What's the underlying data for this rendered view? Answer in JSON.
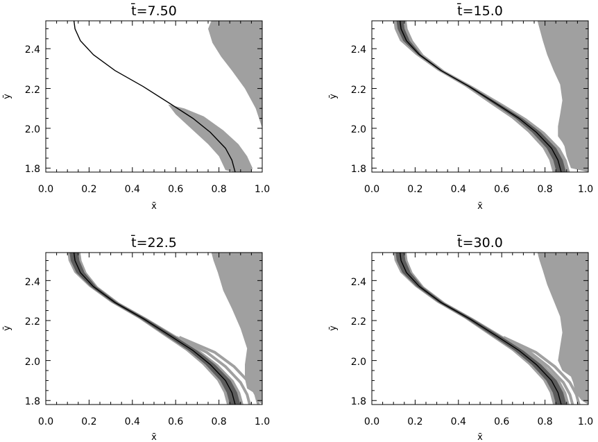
{
  "chart_data": [
    {
      "type": "area",
      "title": "t̄=7.50",
      "xlabel": "x̄",
      "ylabel": "ȳ",
      "xlim": [
        0.0,
        1.0
      ],
      "ylim": [
        1.78,
        2.54
      ],
      "xticks": [
        "0.0",
        "0.2",
        "0.4",
        "0.6",
        "0.8",
        "1.0"
      ],
      "yticks": [
        "1.8",
        "2.0",
        "2.2",
        "2.4"
      ],
      "grid": false,
      "colors": {
        "light": "#a0a0a0",
        "dark": "#5c5c5c",
        "line": "#000000"
      },
      "series": [
        {
          "role": "center-line",
          "x": [
            0.13,
            0.135,
            0.16,
            0.22,
            0.32,
            0.45,
            0.58,
            0.68,
            0.76,
            0.83,
            0.86,
            0.875
          ],
          "y": [
            2.54,
            2.5,
            2.44,
            2.37,
            2.29,
            2.21,
            2.12,
            2.05,
            1.98,
            1.9,
            1.84,
            1.78
          ]
        },
        {
          "role": "light-band",
          "x": [
            0.565,
            0.64,
            0.73,
            0.82,
            0.89,
            0.93,
            0.955,
            0.95,
            0.87,
            0.83,
            0.8,
            0.75,
            0.68,
            0.6
          ],
          "y": [
            2.12,
            2.1,
            2.06,
            1.99,
            1.92,
            1.86,
            1.8,
            1.78,
            1.78,
            1.79,
            1.86,
            1.92,
            1.99,
            2.07
          ]
        },
        {
          "role": "light-right-region",
          "x": [
            0.765,
            1.0,
            1.0,
            0.97,
            0.92,
            0.86,
            0.81,
            0.77,
            0.75
          ],
          "y": [
            2.54,
            2.54,
            2.0,
            2.1,
            2.2,
            2.29,
            2.36,
            2.43,
            2.5
          ]
        }
      ]
    },
    {
      "type": "area",
      "title": "t̄=15.0",
      "xlabel": "x̄",
      "ylabel": "ȳ",
      "xlim": [
        0.0,
        1.0
      ],
      "ylim": [
        1.78,
        2.54
      ],
      "xticks": [
        "0.0",
        "0.2",
        "0.4",
        "0.6",
        "0.8",
        "1.0"
      ],
      "yticks": [
        "1.8",
        "2.0",
        "2.2",
        "2.4"
      ],
      "grid": false,
      "colors": {
        "light": "#a0a0a0",
        "dark": "#5c5c5c",
        "line": "#000000"
      },
      "series": [
        {
          "role": "center-line",
          "x": [
            0.13,
            0.135,
            0.16,
            0.22,
            0.32,
            0.45,
            0.58,
            0.68,
            0.76,
            0.83,
            0.86,
            0.875
          ],
          "y": [
            2.54,
            2.5,
            2.44,
            2.37,
            2.29,
            2.21,
            2.12,
            2.05,
            1.98,
            1.9,
            1.84,
            1.78
          ]
        },
        {
          "role": "light-band-halfwidth",
          "w": [
            0.03,
            0.03,
            0.03,
            0.018,
            0.015,
            0.018,
            0.028,
            0.033,
            0.038,
            0.04,
            0.04,
            0.04
          ]
        },
        {
          "role": "dark-band-halfwidth",
          "w": [
            0.016,
            0.016,
            0.015,
            0.008,
            0.006,
            0.008,
            0.013,
            0.016,
            0.02,
            0.022,
            0.022,
            0.022
          ]
        },
        {
          "role": "light-right-region",
          "x": [
            0.765,
            1.0,
            1.0,
            0.92,
            0.9,
            0.89,
            0.88,
            0.86,
            0.86,
            0.87,
            0.88,
            0.87,
            0.84,
            0.81,
            0.79,
            0.775
          ],
          "y": [
            2.54,
            2.54,
            1.78,
            1.8,
            1.86,
            1.91,
            1.93,
            1.96,
            2.01,
            2.07,
            2.14,
            2.22,
            2.29,
            2.37,
            2.44,
            2.5
          ]
        }
      ]
    },
    {
      "type": "area",
      "title": "t̄=22.5",
      "xlabel": "x̄",
      "ylabel": "ȳ",
      "xlim": [
        0.0,
        1.0
      ],
      "ylim": [
        1.78,
        2.54
      ],
      "xticks": [
        "0.0",
        "0.2",
        "0.4",
        "0.6",
        "0.8",
        "1.0"
      ],
      "yticks": [
        "1.8",
        "2.0",
        "2.2",
        "2.4"
      ],
      "grid": false,
      "colors": {
        "light": "#a0a0a0",
        "dark": "#5c5c5c",
        "line": "#000000"
      },
      "series": [
        {
          "role": "center-line",
          "x": [
            0.13,
            0.135,
            0.16,
            0.22,
            0.32,
            0.45,
            0.58,
            0.68,
            0.76,
            0.83,
            0.86,
            0.875
          ],
          "y": [
            2.54,
            2.5,
            2.44,
            2.37,
            2.29,
            2.21,
            2.12,
            2.05,
            1.98,
            1.9,
            1.84,
            1.78
          ]
        },
        {
          "role": "light-band-halfwidth",
          "w": [
            0.03,
            0.03,
            0.028,
            0.02,
            0.018,
            0.02,
            0.028,
            0.032,
            0.036,
            0.038,
            0.038,
            0.038
          ]
        },
        {
          "role": "dark-band-halfwidth",
          "w": [
            0.02,
            0.02,
            0.019,
            0.013,
            0.011,
            0.013,
            0.018,
            0.02,
            0.022,
            0.024,
            0.024,
            0.024
          ]
        },
        {
          "role": "light-filaments",
          "offsets": [
            0.07,
            0.11
          ]
        },
        {
          "role": "light-right-region",
          "x": [
            0.765,
            1.0,
            1.0,
            0.98,
            0.96,
            0.93,
            0.92,
            0.92,
            0.93,
            0.9,
            0.86,
            0.82,
            0.795,
            0.775
          ],
          "y": [
            2.54,
            2.54,
            1.78,
            1.8,
            1.84,
            1.86,
            1.91,
            1.98,
            2.06,
            2.16,
            2.26,
            2.35,
            2.44,
            2.5
          ]
        }
      ]
    },
    {
      "type": "area",
      "title": "t̄=30.0",
      "xlabel": "x̄",
      "ylabel": "ȳ",
      "xlim": [
        0.0,
        1.0
      ],
      "ylim": [
        1.78,
        2.54
      ],
      "xticks": [
        "0.0",
        "0.2",
        "0.4",
        "0.6",
        "0.8",
        "1.0"
      ],
      "yticks": [
        "1.8",
        "2.0",
        "2.2",
        "2.4"
      ],
      "grid": false,
      "colors": {
        "light": "#a0a0a0",
        "dark": "#5c5c5c",
        "line": "#000000"
      },
      "series": [
        {
          "role": "center-line",
          "x": [
            0.13,
            0.135,
            0.16,
            0.22,
            0.32,
            0.45,
            0.58,
            0.68,
            0.76,
            0.83,
            0.86,
            0.875
          ],
          "y": [
            2.54,
            2.5,
            2.44,
            2.37,
            2.29,
            2.21,
            2.12,
            2.05,
            1.98,
            1.9,
            1.84,
            1.78
          ]
        },
        {
          "role": "light-band-halfwidth",
          "w": [
            0.03,
            0.03,
            0.028,
            0.02,
            0.018,
            0.02,
            0.028,
            0.032,
            0.036,
            0.038,
            0.038,
            0.038
          ]
        },
        {
          "role": "dark-band-halfwidth",
          "w": [
            0.02,
            0.02,
            0.019,
            0.013,
            0.011,
            0.013,
            0.018,
            0.02,
            0.022,
            0.024,
            0.024,
            0.024
          ]
        },
        {
          "role": "light-filaments",
          "offsets": [
            0.055,
            0.085
          ]
        },
        {
          "role": "light-right-region",
          "x": [
            0.765,
            1.0,
            1.0,
            0.97,
            0.94,
            0.93,
            0.92,
            0.88,
            0.86,
            0.87,
            0.88,
            0.87,
            0.84,
            0.81,
            0.79,
            0.775
          ],
          "y": [
            2.54,
            2.54,
            1.78,
            1.8,
            1.84,
            1.89,
            1.92,
            1.95,
            2.0,
            2.07,
            2.14,
            2.22,
            2.3,
            2.38,
            2.45,
            2.5
          ]
        }
      ]
    }
  ]
}
